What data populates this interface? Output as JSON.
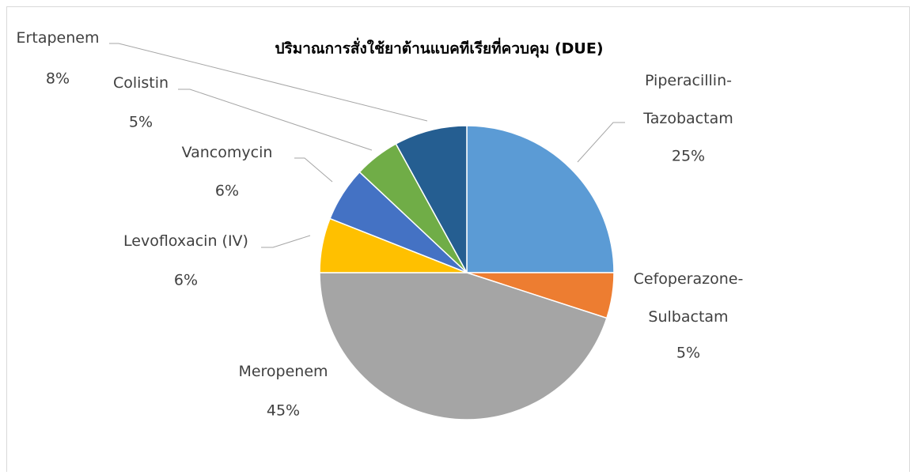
{
  "chart_data": {
    "type": "pie",
    "title": "ปริมาณการสั่งใช้ยาต้านแบคทีเรียที่ควบคุม (DUE)",
    "categories": [
      "Piperacillin-Tazobactam",
      "Cefoperazone-Sulbactam",
      "Meropenem",
      "Levofloxacin (IV)",
      "Vancomycin",
      "Colistin",
      "Ertapenem"
    ],
    "values": [
      25,
      5,
      45,
      6,
      6,
      5,
      8
    ],
    "value_labels": [
      "25%",
      "5%",
      "45%",
      "6%",
      "6%",
      "5%",
      "8%"
    ],
    "colors": [
      "#5b9bd5",
      "#ed7d31",
      "#a5a5a5",
      "#ffc000",
      "#4472c4",
      "#70ad47",
      "#255e91"
    ]
  }
}
